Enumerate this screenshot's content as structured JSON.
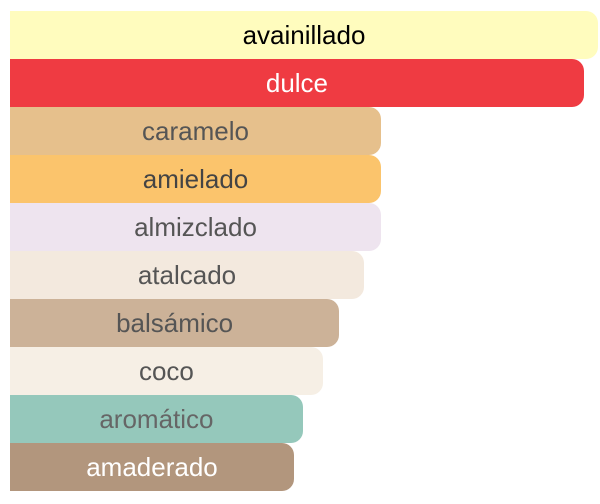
{
  "chart_data": {
    "type": "bar",
    "orientation": "horizontal",
    "xlim": [
      0,
      100
    ],
    "grid": false,
    "categories": [
      "avainillado",
      "dulce",
      "caramelo",
      "amielado",
      "almizclado",
      "atalcado",
      "balsámico",
      "coco",
      "aromático",
      "amaderado"
    ],
    "values": [
      100,
      97.6,
      63.1,
      63.1,
      63.1,
      60.2,
      56.0,
      53.2,
      49.8,
      48.3
    ],
    "colors": [
      "#fffcbe",
      "#ef3b42",
      "#e6c08c",
      "#fbc46c",
      "#eee4ef",
      "#f3e9de",
      "#ccb298",
      "#f6efe5",
      "#95c8bb",
      "#b2967d"
    ],
    "label_colors": [
      "#000000",
      "#ffffff",
      "#555555",
      "#444444",
      "#555555",
      "#555555",
      "#555555",
      "#555555",
      "#666666",
      "#ffffff"
    ]
  }
}
